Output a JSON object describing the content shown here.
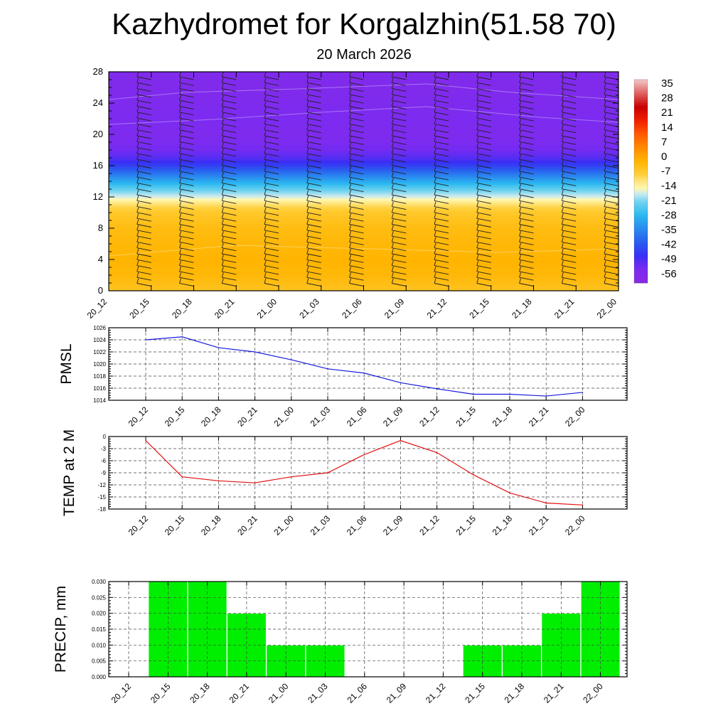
{
  "title": "Kazhydromet for Korgalzhin(51.58 70)",
  "subtitle": "20 March 2026",
  "time_labels": [
    "20_12",
    "20_15",
    "20_18",
    "20_21",
    "21_00",
    "21_03",
    "21_06",
    "21_09",
    "21_12",
    "21_15",
    "21_18",
    "21_21",
    "22_00"
  ],
  "chart_data": [
    {
      "type": "heatmap",
      "name": "temperature-height-section",
      "x": [
        "20_12",
        "20_15",
        "20_18",
        "20_21",
        "21_00",
        "21_03",
        "21_06",
        "21_09",
        "21_12",
        "21_15",
        "21_18",
        "21_21",
        "22_00"
      ],
      "ylim": [
        0,
        28
      ],
      "yticks": [
        0,
        4,
        8,
        12,
        16,
        20,
        24,
        28
      ],
      "colorbar": {
        "labels": [
          "35",
          "28",
          "21",
          "14",
          "7",
          "0",
          "-7",
          "-14",
          "-21",
          "-28",
          "-35",
          "-42",
          "-49",
          "-56"
        ],
        "range": [
          -63,
          42
        ],
        "stops": [
          {
            "v": -63,
            "color": "#8a2be2"
          },
          {
            "v": -56,
            "color": "#7c2bf0"
          },
          {
            "v": -49,
            "color": "#3a2ff5"
          },
          {
            "v": -42,
            "color": "#2a5cf0"
          },
          {
            "v": -35,
            "color": "#2a8af0"
          },
          {
            "v": -28,
            "color": "#2ab8f0"
          },
          {
            "v": -21,
            "color": "#6fd3ef"
          },
          {
            "v": -17,
            "color": "#c8e9f2"
          },
          {
            "v": -14,
            "color": "#fff7b0"
          },
          {
            "v": -10,
            "color": "#ffe37a"
          },
          {
            "v": -7,
            "color": "#ffcf3a"
          },
          {
            "v": 0,
            "color": "#ffb400"
          },
          {
            "v": 7,
            "color": "#ff8a00"
          },
          {
            "v": 14,
            "color": "#ff5a00"
          },
          {
            "v": 21,
            "color": "#f01e00"
          },
          {
            "v": 28,
            "color": "#c80000"
          },
          {
            "v": 35,
            "color": "#e06060"
          },
          {
            "v": 42,
            "color": "#f2c6c6"
          }
        ]
      },
      "profile": {
        "heights": [
          0,
          2,
          4,
          6,
          8,
          10,
          11,
          12,
          13,
          14,
          15,
          16,
          17,
          18,
          20,
          22,
          24,
          26,
          28
        ],
        "temps": [
          -4,
          -1,
          0,
          -1,
          -2,
          -5,
          -9,
          -16,
          -22,
          -30,
          -38,
          -46,
          -52,
          -55,
          -57,
          -56,
          -57,
          -58,
          -58
        ]
      }
    },
    {
      "type": "line",
      "name": "PMSL",
      "ylabel": "PMSL",
      "categories": [
        "20_12",
        "20_15",
        "20_18",
        "20_21",
        "21_00",
        "21_03",
        "21_06",
        "21_09",
        "21_12",
        "21_15",
        "21_18",
        "21_21",
        "22_00"
      ],
      "values": [
        1024.0,
        1024.5,
        1022.7,
        1022.0,
        1020.7,
        1019.2,
        1018.5,
        1016.9,
        1015.9,
        1015.0,
        1015.0,
        1014.7,
        1015.3
      ],
      "ylim": [
        1014,
        1026
      ],
      "yticks": [
        "1014",
        "1016",
        "1018",
        "1020",
        "1022",
        "1024",
        "1026"
      ],
      "color": "#1a1adf"
    },
    {
      "type": "line",
      "name": "TEMP at 2 M",
      "ylabel": "TEMP at 2 M",
      "categories": [
        "20_12",
        "20_15",
        "20_18",
        "20_21",
        "21_00",
        "21_03",
        "21_06",
        "21_09",
        "21_12",
        "21_15",
        "21_18",
        "21_21",
        "22_00"
      ],
      "values": [
        -1.0,
        -10.0,
        -11.0,
        -11.5,
        -10.0,
        -9.0,
        -4.5,
        -1.0,
        -4.0,
        -9.5,
        -14.0,
        -16.5,
        -17.0
      ],
      "ylim": [
        -18,
        0
      ],
      "yticks": [
        "-18",
        "-15",
        "-12",
        "-9",
        "-6",
        "-3",
        "0"
      ],
      "color": "#e01010"
    },
    {
      "type": "bar",
      "name": "PRECIP, mm",
      "ylabel": "PRECIP, mm",
      "categories": [
        "20_12",
        "20_15",
        "20_18",
        "20_21",
        "21_00",
        "21_03",
        "21_06",
        "21_09",
        "21_12",
        "21_15",
        "21_18",
        "21_21",
        "22_00"
      ],
      "values": [
        0,
        0.03,
        0.03,
        0.02,
        0.01,
        0.01,
        0,
        0,
        0,
        0.01,
        0.01,
        0.02,
        0.03
      ],
      "ylim": [
        0,
        0.03
      ],
      "yticks": [
        "0.000",
        "0.005",
        "0.010",
        "0.015",
        "0.020",
        "0.025",
        "0.030"
      ],
      "color": "#00ee00"
    }
  ]
}
